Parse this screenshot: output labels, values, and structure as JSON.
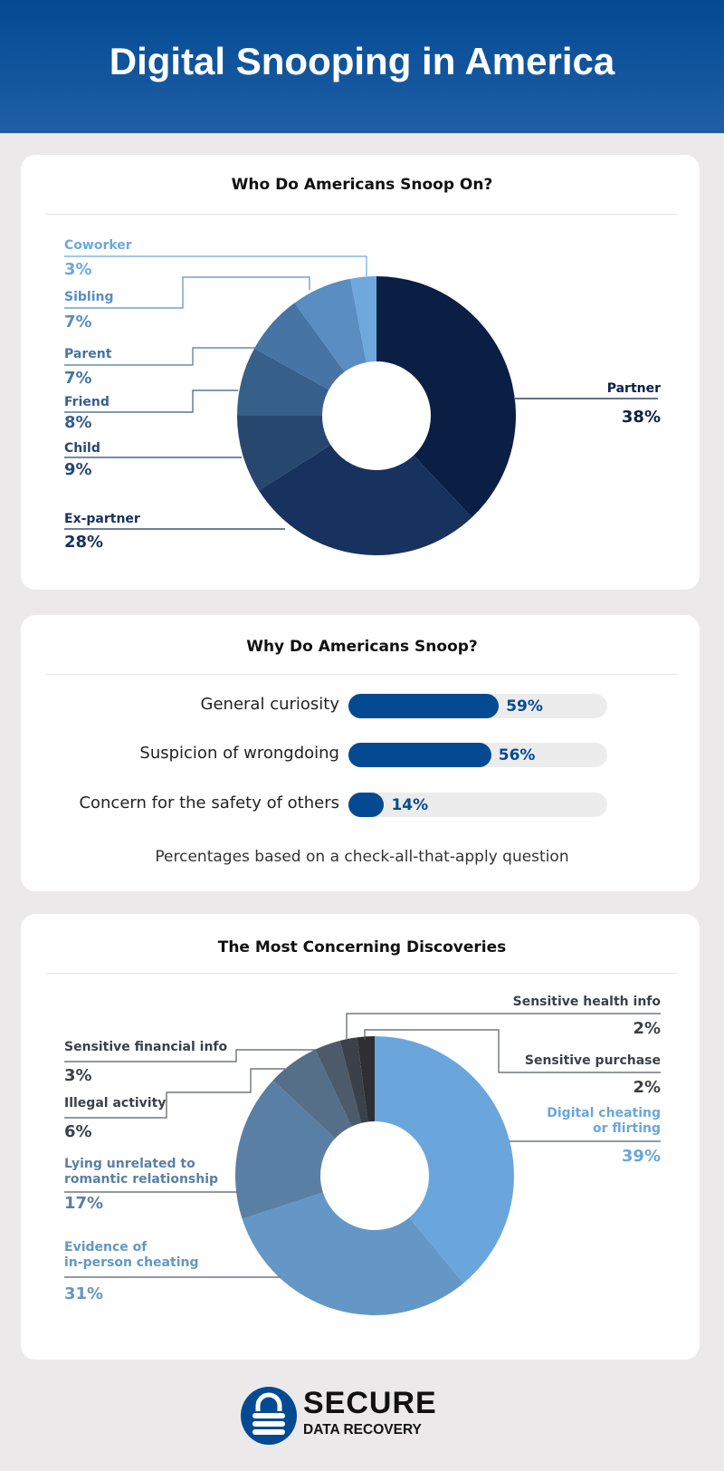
{
  "header": {
    "title": "Digital Snooping in America"
  },
  "chart_data": [
    {
      "type": "pie",
      "donut": true,
      "title": "Who Do Americans Snoop On?",
      "categories": [
        "Partner",
        "Ex-partner",
        "Child",
        "Friend",
        "Parent",
        "Sibling",
        "Coworker"
      ],
      "values": [
        38,
        28,
        9,
        8,
        7,
        7,
        3
      ],
      "labels": [
        "38%",
        "28%",
        "9%",
        "8%",
        "7%",
        "7%",
        "3%"
      ],
      "colors": [
        "#0b1f45",
        "#17325e",
        "#27476f",
        "#365f8a",
        "#4674a4",
        "#5a8dc2",
        "#6ea8dc"
      ]
    },
    {
      "type": "bar",
      "orientation": "horizontal",
      "title": "Why Do Americans Snoop?",
      "categories": [
        "General curiosity",
        "Suspicion of wrongdoing",
        "Concern for the safety of others"
      ],
      "values": [
        59,
        56,
        14
      ],
      "labels": [
        "59%",
        "56%",
        "14%"
      ],
      "xlim": [
        0,
        100
      ],
      "color": "#034a93",
      "note": "Percentages based on a check-all-that-apply question"
    },
    {
      "type": "pie",
      "donut": true,
      "title": "The Most Concerning Discoveries",
      "categories": [
        "Digital cheating or flirting",
        "Evidence of in-person cheating",
        "Lying unrelated to romantic relationship",
        "Illegal activity",
        "Sensitive financial info",
        "Sensitive health info",
        "Sensitive purchase"
      ],
      "display_labels": [
        [
          "Digital cheating",
          "or flirting"
        ],
        [
          "Evidence of",
          "in-person cheating"
        ],
        [
          "Lying unrelated to",
          "romantic relationship"
        ],
        [
          "Illegal activity"
        ],
        [
          "Sensitive financial info"
        ],
        [
          "Sensitive health info"
        ],
        [
          "Sensitive purchase"
        ]
      ],
      "values": [
        39,
        31,
        17,
        6,
        3,
        2,
        2
      ],
      "labels": [
        "39%",
        "31%",
        "17%",
        "6%",
        "3%",
        "2%",
        "2%"
      ],
      "colors": [
        "#6aa6dc",
        "#6497c5",
        "#5a7fa5",
        "#566f88",
        "#4c5a69",
        "#3b4149",
        "#2d2f33"
      ]
    }
  ],
  "logo": {
    "line1": "SECURE",
    "line2": "DATA RECOVERY",
    "color": "#034a93"
  }
}
